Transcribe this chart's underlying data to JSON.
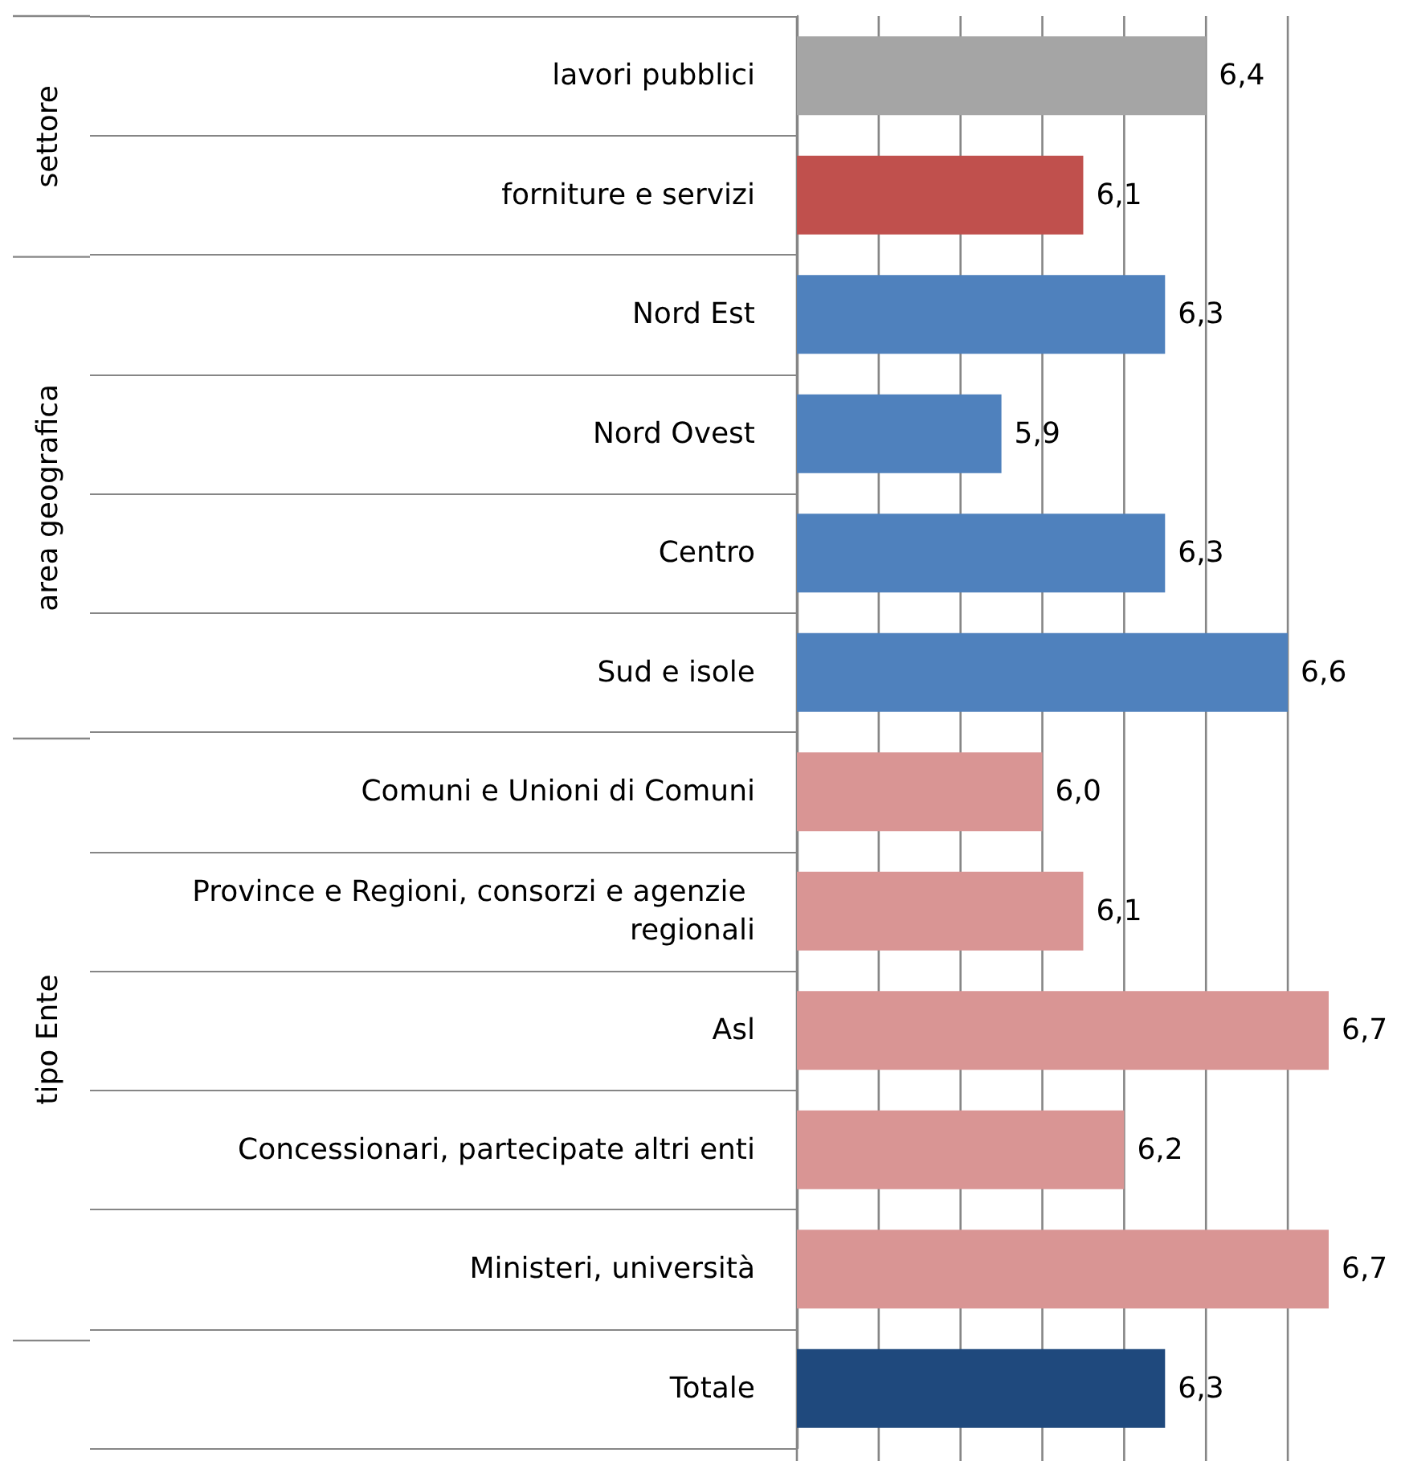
{
  "chart_data": {
    "type": "bar",
    "orientation": "horizontal",
    "categories": [
      "lavori pubblici",
      "forniture e servizi",
      "Nord Est",
      "Nord Ovest",
      "Centro",
      "Sud e isole",
      "Comuni e Unioni di Comuni",
      "Province e Regioni, consorzi e agenzie regionali",
      "Asl",
      "Concessionari, partecipate altri enti",
      "Ministeri, università",
      "Totale"
    ],
    "values": [
      6.4,
      6.1,
      6.3,
      5.9,
      6.3,
      6.6,
      6.0,
      6.1,
      6.7,
      6.2,
      6.7,
      6.3
    ],
    "value_labels": [
      "6,4",
      "6,1",
      "6,3",
      "5,9",
      "6,3",
      "6,6",
      "6,0",
      "6,1",
      "6,7",
      "6,2",
      "6,7",
      "6,3"
    ],
    "colors": [
      "#a5a5a5",
      "#c0504d",
      "#4f81bd",
      "#4f81bd",
      "#4f81bd",
      "#4f81bd",
      "#d99594",
      "#d99594",
      "#d99594",
      "#d99594",
      "#d99594",
      "#1f497d"
    ],
    "xlim": [
      5.4,
      6.7
    ],
    "xticks": [
      {
        "value": 5.4,
        "label": null
      },
      {
        "value": 5.6,
        "label": null
      },
      {
        "value": 5.8,
        "label": null
      },
      {
        "value": 6.0,
        "label": null
      },
      {
        "value": 6.2,
        "label": null
      },
      {
        "value": 6.4,
        "label": null
      },
      {
        "value": 6.6,
        "label": null
      }
    ],
    "grid": "x",
    "annotations": [
      "settore",
      "area geografica",
      "tipo Ente"
    ]
  }
}
